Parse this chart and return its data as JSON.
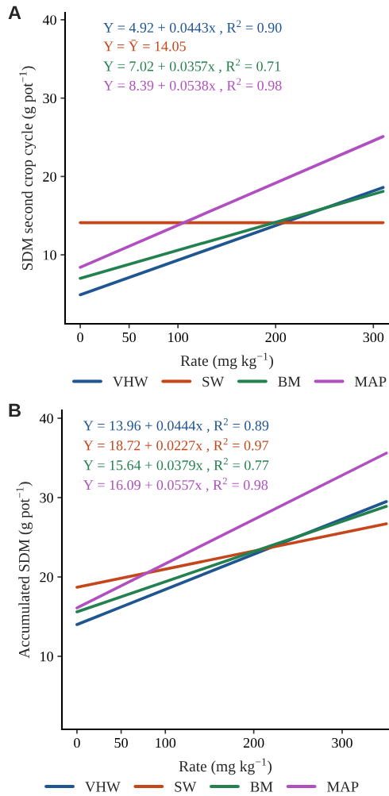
{
  "chart_data": [
    {
      "type": "line",
      "title": "A",
      "xlabel": "Rate (mg kg$^{−1}$)",
      "ylabel": "SDM second crop cycle (g pot$^{−1}$)",
      "x": [
        0,
        310
      ],
      "xlim": [
        -15.5,
        316
      ],
      "xticks": [
        0,
        50,
        100,
        200,
        300
      ],
      "ylim": [
        1.2,
        40.9
      ],
      "yticks": [
        10,
        20,
        30,
        40
      ],
      "series": [
        {
          "name": "VHW",
          "color": "#1f5591",
          "values": [
            4.9,
            18.6
          ]
        },
        {
          "name": "SW",
          "color": "#c5461a",
          "values": [
            14.1,
            14.1
          ]
        },
        {
          "name": "BM",
          "color": "#23804f",
          "values": [
            7.0,
            18.1
          ]
        },
        {
          "name": "MAP",
          "color": "#b04fbf",
          "values": [
            8.4,
            25.1
          ]
        }
      ],
      "annotations": [
        "Y = 4.92 + 0.0443x , R$^{2}$ = 0.90",
        "Y = Ȳ = 14.05",
        "Y = 7.02 + 0.0357x , R$^{2}$ = 0.71",
        "Y = 8.39 + 0.0538x , R$^{2}$ = 0.98"
      ],
      "legend": "bottom",
      "grid": false
    },
    {
      "type": "line",
      "title": "B",
      "xlabel": "Rate (mg kg$^{−1}$)",
      "ylabel": "Accumulated SDM (g pot$^{−1}$)",
      "x": [
        0,
        350
      ],
      "xlim": [
        -17,
        353
      ],
      "xticks": [
        0,
        50,
        100,
        200,
        300
      ],
      "ylim": [
        0.8,
        41
      ],
      "yticks": [
        10,
        20,
        30,
        40
      ],
      "series": [
        {
          "name": "VHW",
          "color": "#1f5591",
          "values": [
            14.0,
            29.5
          ]
        },
        {
          "name": "SW",
          "color": "#c5461a",
          "values": [
            18.7,
            26.7
          ]
        },
        {
          "name": "BM",
          "color": "#23804f",
          "values": [
            15.6,
            28.9
          ]
        },
        {
          "name": "MAP",
          "color": "#b04fbf",
          "values": [
            16.1,
            35.6
          ]
        }
      ],
      "annotations": [
        "Y = 13.96 + 0.0444x , R$^{2}$ = 0.89",
        "Y = 18.72 + 0.0227x , R$^{2}$ = 0.97",
        "Y = 15.64 + 0.0379x , R$^{2}$ = 0.77",
        "Y = 16.09 + 0.0557x , R$^{2}$ = 0.98"
      ],
      "legend": "bottom",
      "grid": false
    }
  ]
}
